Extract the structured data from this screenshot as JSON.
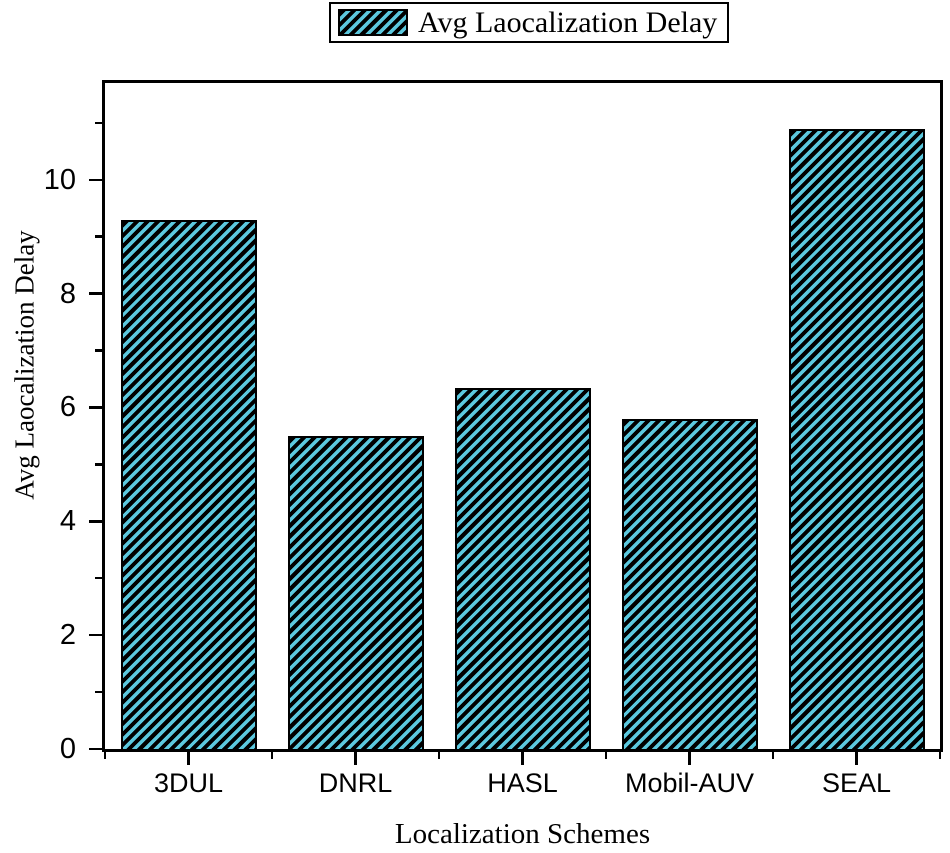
{
  "legend": {
    "label": "Avg Laocalization Delay",
    "swatch_icon": "hatched-bar-swatch"
  },
  "chart_data": {
    "type": "bar",
    "title": "",
    "categories": [
      "3DUL",
      "DNRL",
      "HASL",
      "Mobil-AUV",
      "SEAL"
    ],
    "series": [
      {
        "name": "Avg Laocalization Delay",
        "values": [
          9.3,
          5.5,
          6.35,
          5.8,
          10.9
        ]
      }
    ],
    "xlabel": "Localization Schemes",
    "ylabel": "Avg Laocalization Delay",
    "ylim": [
      0,
      11.7
    ],
    "y_major_ticks": [
      0,
      2,
      4,
      6,
      8,
      10
    ],
    "y_minor_ticks": [
      1,
      3,
      5,
      7,
      9,
      11
    ],
    "y_tick_labels": [
      "0",
      "2",
      "4",
      "6",
      "8",
      "10"
    ],
    "grid": false,
    "legend_position": "top-center",
    "bar_fill": "#5cc8de",
    "bar_edge": "#000000",
    "bar_hatch": "forward-diagonal",
    "frame_color": "#000000",
    "background": "#ffffff"
  }
}
